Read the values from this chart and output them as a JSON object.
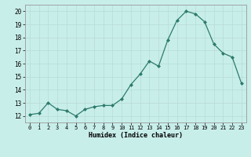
{
  "x": [
    0,
    1,
    2,
    3,
    4,
    5,
    6,
    7,
    8,
    9,
    10,
    11,
    12,
    13,
    14,
    15,
    16,
    17,
    18,
    19,
    20,
    21,
    22,
    23
  ],
  "y": [
    12.1,
    12.2,
    13.0,
    12.5,
    12.4,
    12.0,
    12.5,
    12.7,
    12.8,
    12.8,
    13.3,
    14.4,
    15.2,
    16.2,
    15.8,
    17.8,
    19.3,
    20.0,
    19.8,
    19.2,
    17.5,
    16.8,
    16.5,
    14.5
  ],
  "title": "",
  "xlabel": "Humidex (Indice chaleur)",
  "ylabel": "",
  "xlim": [
    -0.5,
    23.5
  ],
  "ylim": [
    11.5,
    20.5
  ],
  "yticks": [
    12,
    13,
    14,
    15,
    16,
    17,
    18,
    19,
    20
  ],
  "xticks": [
    0,
    1,
    2,
    3,
    4,
    5,
    6,
    7,
    8,
    9,
    10,
    11,
    12,
    13,
    14,
    15,
    16,
    17,
    18,
    19,
    20,
    21,
    22,
    23
  ],
  "line_color": "#2d7b6b",
  "marker_color": "#2d7b6b",
  "bg_color": "#c8eeea",
  "grid_color": "#b8dcd8",
  "border_color": "#999999"
}
